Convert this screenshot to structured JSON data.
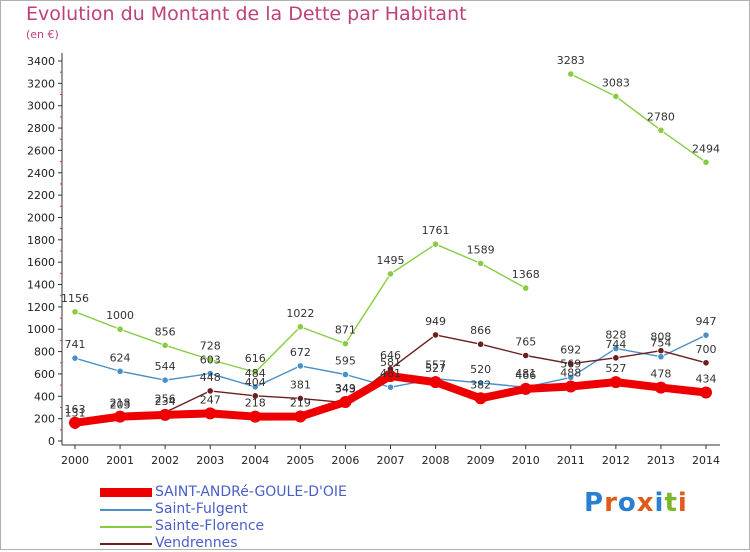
{
  "title": "Evolution du Montant de la Dette par Habitant",
  "subtitle": "(en €)",
  "chart_data": {
    "type": "line",
    "x": [
      "2000",
      "2001",
      "2002",
      "2003",
      "2004",
      "2005",
      "2006",
      "2007",
      "2008",
      "2009",
      "2010",
      "2011",
      "2012",
      "2013",
      "2014"
    ],
    "ylim": [
      0,
      3400
    ],
    "yticks": [
      0,
      200,
      400,
      600,
      800,
      1000,
      1200,
      1400,
      1600,
      1800,
      2000,
      2200,
      2400,
      2600,
      2800,
      3000,
      3200,
      3400
    ],
    "grid": false,
    "legend_position": "bottom",
    "series": [
      {
        "name": "SAINT-ANDRé-GOULE-D'OIE",
        "color": "#ee0000",
        "values": [
          163,
          218,
          234,
          247,
          218,
          219,
          349,
          581,
          527,
          382,
          466,
          488,
          527,
          478,
          434
        ]
      },
      {
        "name": "Saint-Fulgent",
        "color": "#4a90c8",
        "values": [
          741,
          624,
          544,
          603,
          484,
          672,
          595,
          481,
          557,
          520,
          481,
          569,
          828,
          754,
          947
        ]
      },
      {
        "name": "Sainte-Florence",
        "color": "#88cc44",
        "values": [
          1156,
          1000,
          856,
          728,
          616,
          1022,
          871,
          1495,
          1761,
          1589,
          1368,
          3283,
          3083,
          2780,
          2494
        ]
      },
      {
        "name": "Vendrennes",
        "color": "#6b1f1f",
        "values": [
          131,
          203,
          256,
          448,
          404,
          381,
          343,
          646,
          949,
          866,
          765,
          692,
          744,
          808,
          700
        ]
      }
    ]
  },
  "logo": {
    "letters": [
      "P",
      "r",
      "o",
      "x",
      "i",
      "t",
      "i"
    ],
    "colors": [
      "#2a7fd0",
      "#e05a1a",
      "#2a7fd0",
      "#e05a1a",
      "#2a7fd0",
      "#7ab82a",
      "#e05a1a"
    ]
  }
}
